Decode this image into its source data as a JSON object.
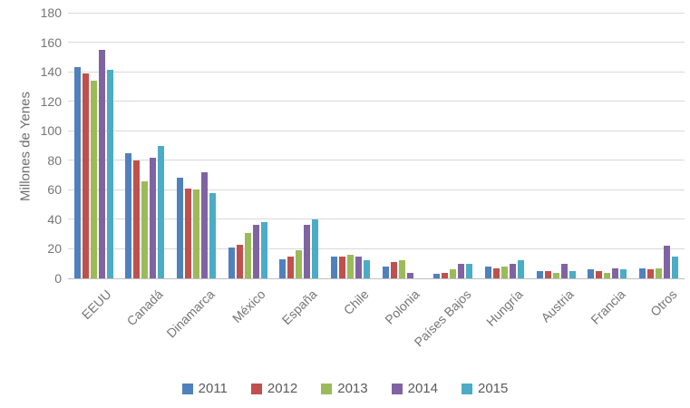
{
  "chart_data": {
    "type": "bar",
    "title": "",
    "xlabel": "",
    "ylabel": "Millones de Yenes",
    "ylim": [
      0,
      180
    ],
    "ytick_step": 20,
    "grid": true,
    "legend_position": "bottom",
    "categories": [
      "EEUU",
      "Canadá",
      "Dinamarca",
      "México",
      "España",
      "Chile",
      "Polonia",
      "Países Bajos",
      "Hungría",
      "Austria",
      "Francia",
      "Otros"
    ],
    "series": [
      {
        "name": "2011",
        "color": "#4F81BD",
        "values": [
          143,
          85,
          68,
          21,
          13,
          15,
          8,
          3,
          8,
          5,
          6,
          7
        ]
      },
      {
        "name": "2012",
        "color": "#C0504D",
        "values": [
          139,
          80,
          61,
          23,
          15,
          15,
          11,
          4,
          7,
          5,
          5,
          6
        ]
      },
      {
        "name": "2013",
        "color": "#9BBB59",
        "values": [
          134,
          66,
          60,
          31,
          19,
          16,
          12,
          6,
          8,
          4,
          4,
          7
        ]
      },
      {
        "name": "2014",
        "color": "#8064A2",
        "values": [
          155,
          82,
          72,
          36,
          36,
          15,
          4,
          10,
          10,
          10,
          7,
          22
        ]
      },
      {
        "name": "2015",
        "color": "#4BACC6",
        "values": [
          141,
          90,
          58,
          38,
          40,
          12,
          0,
          10,
          12,
          5,
          6,
          15
        ]
      }
    ]
  },
  "colors": {
    "axis_text": "#757575",
    "gridline": "#D9D9D9",
    "baseline": "#BFBFBF",
    "background": "#FFFFFF"
  }
}
